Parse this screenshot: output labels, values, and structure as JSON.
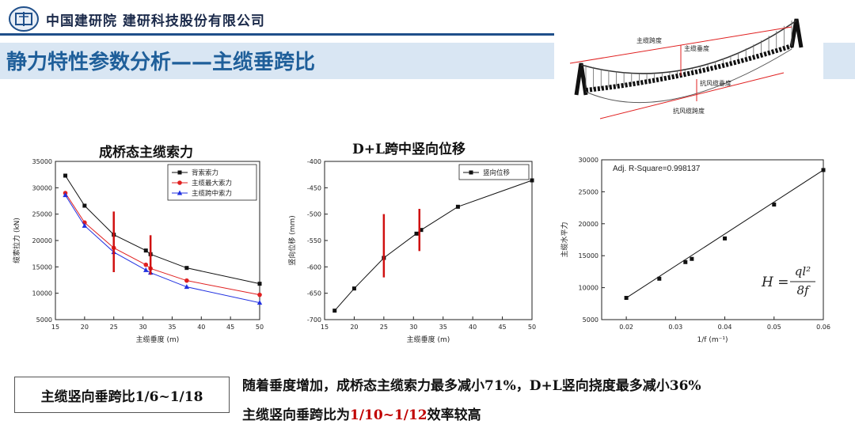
{
  "header": {
    "org": "中国建研院 建研科技股份有限公司",
    "title": "静力特性参数分析——主缆垂跨比"
  },
  "diagram": {
    "labels": [
      "主缆跨度",
      "主缆垂度",
      "抗风缆垂度",
      "抗风缆跨度"
    ]
  },
  "chart_data": [
    {
      "type": "line",
      "title": "成桥态主缆索力",
      "xlabel": "主缆垂度 (m)",
      "ylabel": "缆索拉力 (kN)",
      "xlim": [
        15,
        50
      ],
      "ylim": [
        5000,
        35000
      ],
      "xticks": [
        15,
        20,
        25,
        30,
        35,
        40,
        45,
        50
      ],
      "yticks": [
        5000,
        10000,
        15000,
        20000,
        25000,
        30000,
        35000
      ],
      "legend": "top-right",
      "series": [
        {
          "name": "背索索力",
          "color": "#111111",
          "marker": "square",
          "x": [
            16.7,
            20,
            25,
            30.5,
            31.3,
            37.5,
            50
          ],
          "y": [
            32300,
            26600,
            21100,
            18100,
            17400,
            14800,
            11800
          ]
        },
        {
          "name": "主缆最大索力",
          "color": "#e02020",
          "marker": "circle",
          "x": [
            16.7,
            20,
            25,
            30.5,
            31.3,
            37.5,
            50
          ],
          "y": [
            29000,
            23400,
            18600,
            15400,
            14700,
            12400,
            9700
          ]
        },
        {
          "name": "主缆跨中索力",
          "color": "#2030e0",
          "marker": "triangle",
          "x": [
            16.7,
            20,
            25,
            30.5,
            31.3,
            37.5,
            50
          ],
          "y": [
            28600,
            22800,
            17800,
            14400,
            13900,
            11200,
            8200
          ]
        }
      ],
      "markers_x": [
        25,
        31.3
      ]
    },
    {
      "type": "line",
      "title": "D+L跨中竖向位移",
      "xlabel": "主缆垂度 (m)",
      "ylabel": "竖向位移 (mm)",
      "xlim": [
        15,
        50
      ],
      "ylim": [
        -700,
        -400
      ],
      "xticks": [
        15,
        20,
        25,
        30,
        35,
        40,
        45,
        50
      ],
      "yticks": [
        -700,
        -650,
        -600,
        -550,
        -500,
        -450,
        -400
      ],
      "legend": "top-right",
      "series": [
        {
          "name": "竖向位移",
          "color": "#111111",
          "marker": "square",
          "x": [
            16.7,
            20,
            25,
            30.5,
            31.3,
            37.5,
            50
          ],
          "y": [
            -683,
            -641,
            -583,
            -537,
            -530,
            -486,
            -436
          ]
        }
      ],
      "markers_x": [
        25,
        31
      ]
    },
    {
      "type": "scatter",
      "xlabel": "1/f (m⁻¹)",
      "ylabel": "主缆水平力",
      "xlim": [
        0.015,
        0.06
      ],
      "ylim": [
        5000,
        30000
      ],
      "xticks": [
        0.02,
        0.03,
        0.04,
        0.05,
        0.06
      ],
      "yticks": [
        5000,
        10000,
        15000,
        20000,
        25000,
        30000
      ],
      "annotation": "Adj. R-Square=0.998137",
      "formula": {
        "lhs": "H",
        "num": "ql²",
        "den": "8f"
      },
      "series": [
        {
          "color": "#111111",
          "marker": "square",
          "x": [
            0.02,
            0.0267,
            0.032,
            0.0333,
            0.04,
            0.05,
            0.06
          ],
          "y": [
            8400,
            11400,
            14000,
            14500,
            17700,
            23000,
            28400
          ]
        }
      ],
      "fit": {
        "x": [
          0.02,
          0.06
        ],
        "y": [
          8400,
          28400
        ]
      }
    }
  ],
  "bottom": {
    "box_text": "主缆竖向垂跨比1/6~1/18",
    "line1": "随着垂度增加，成桥态主缆索力最多减小71%，D+L竖向挠度最多减小36%",
    "line2_prefix": "主缆竖向垂跨比为",
    "line2_red": "1/10~1/12",
    "line2_suffix": "效率较高"
  }
}
